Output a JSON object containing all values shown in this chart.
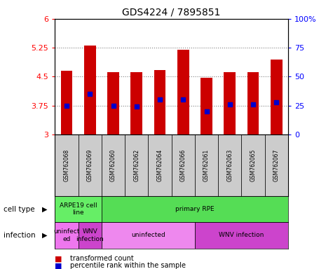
{
  "title": "GDS4224 / 7895851",
  "samples": [
    "GSM762068",
    "GSM762069",
    "GSM762060",
    "GSM762062",
    "GSM762064",
    "GSM762066",
    "GSM762061",
    "GSM762063",
    "GSM762065",
    "GSM762067"
  ],
  "transformed_counts": [
    4.65,
    5.3,
    4.62,
    4.62,
    4.68,
    5.2,
    4.47,
    4.62,
    4.62,
    4.95
  ],
  "percentile_ranks": [
    25,
    35,
    25,
    24,
    30,
    30,
    20,
    26,
    26,
    28
  ],
  "y_min": 3.0,
  "y_max": 6.0,
  "y_ticks": [
    3.0,
    3.75,
    4.5,
    5.25,
    6.0
  ],
  "y2_ticks": [
    0,
    25,
    50,
    75,
    100
  ],
  "bar_color": "#cc0000",
  "dot_color": "#0000cc",
  "cell_ranges": [
    {
      "label": "ARPE19 cell\nline",
      "start": 0,
      "end": 2,
      "color": "#66ee66"
    },
    {
      "label": "primary RPE",
      "start": 2,
      "end": 10,
      "color": "#55dd55"
    }
  ],
  "inf_ranges": [
    {
      "label": "uninfect\ned",
      "start": 0,
      "end": 1,
      "color": "#ee77ee"
    },
    {
      "label": "WNV\ninfection",
      "start": 1,
      "end": 2,
      "color": "#cc44cc"
    },
    {
      "label": "uninfected",
      "start": 2,
      "end": 6,
      "color": "#ee88ee"
    },
    {
      "label": "WNV infection",
      "start": 6,
      "end": 10,
      "color": "#cc44cc"
    }
  ],
  "sample_box_color": "#cccccc",
  "label_cell_type": "cell type",
  "label_infection": "infection",
  "legend_red": "transformed count",
  "legend_blue": "percentile rank within the sample",
  "background_color": "#ffffff"
}
